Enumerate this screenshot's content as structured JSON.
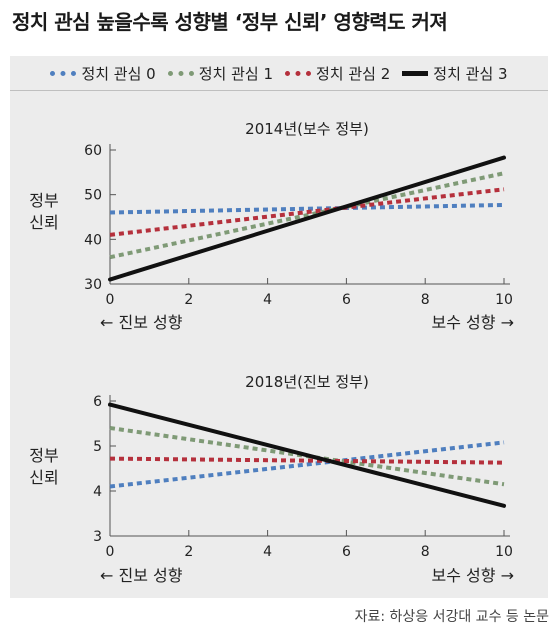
{
  "headline": "정치 관심 높을수록 성향별 ‘정부 신뢰’ 영향력도 커져",
  "legend": [
    {
      "label": "정치 관심 0",
      "color": "#4f7fbf",
      "style": "dotted"
    },
    {
      "label": "정치 관심 1",
      "color": "#7f9a76",
      "style": "dotted"
    },
    {
      "label": "정치 관심 2",
      "color": "#b5303c",
      "style": "dotted"
    },
    {
      "label": "정치 관심 3",
      "color": "#111111",
      "style": "solid"
    }
  ],
  "source": "자료: 하상응 서강대 교수 등 논문",
  "chart_data": [
    {
      "type": "line",
      "title": "2014년(보수 정부)",
      "ylabel": "정부 신뢰",
      "x_ticks": [
        0,
        2,
        4,
        6,
        8,
        10
      ],
      "y_ticks": [
        30,
        40,
        50,
        60
      ],
      "xlim": [
        0,
        10
      ],
      "ylim": [
        30,
        60
      ],
      "x_left_label": "← 진보 성향",
      "x_right_label": "보수 성향 →",
      "series": [
        {
          "name": "정치 관심 0",
          "x": [
            0,
            10
          ],
          "values": [
            46.0,
            47.7
          ]
        },
        {
          "name": "정치 관심 1",
          "x": [
            0,
            10
          ],
          "values": [
            36.0,
            54.8
          ]
        },
        {
          "name": "정치 관심 2",
          "x": [
            0,
            10
          ],
          "values": [
            41.0,
            51.2
          ]
        },
        {
          "name": "정치 관심 3",
          "x": [
            0,
            10
          ],
          "values": [
            31.0,
            58.3
          ]
        }
      ]
    },
    {
      "type": "line",
      "title": "2018년(진보 정부)",
      "ylabel": "정부 신뢰",
      "x_ticks": [
        0,
        2,
        4,
        6,
        8,
        10
      ],
      "y_ticks": [
        3,
        4,
        5,
        6
      ],
      "xlim": [
        0,
        10
      ],
      "ylim": [
        3,
        6
      ],
      "x_left_label": "← 진보 성향",
      "x_right_label": "보수 성향 →",
      "series": [
        {
          "name": "정치 관심 0",
          "x": [
            0,
            10
          ],
          "values": [
            4.1,
            5.08
          ]
        },
        {
          "name": "정치 관심 1",
          "x": [
            0,
            10
          ],
          "values": [
            5.4,
            4.15
          ]
        },
        {
          "name": "정치 관심 2",
          "x": [
            0,
            10
          ],
          "values": [
            4.72,
            4.63
          ]
        },
        {
          "name": "정치 관심 3",
          "x": [
            0,
            10
          ],
          "values": [
            5.92,
            3.67
          ]
        }
      ]
    }
  ]
}
